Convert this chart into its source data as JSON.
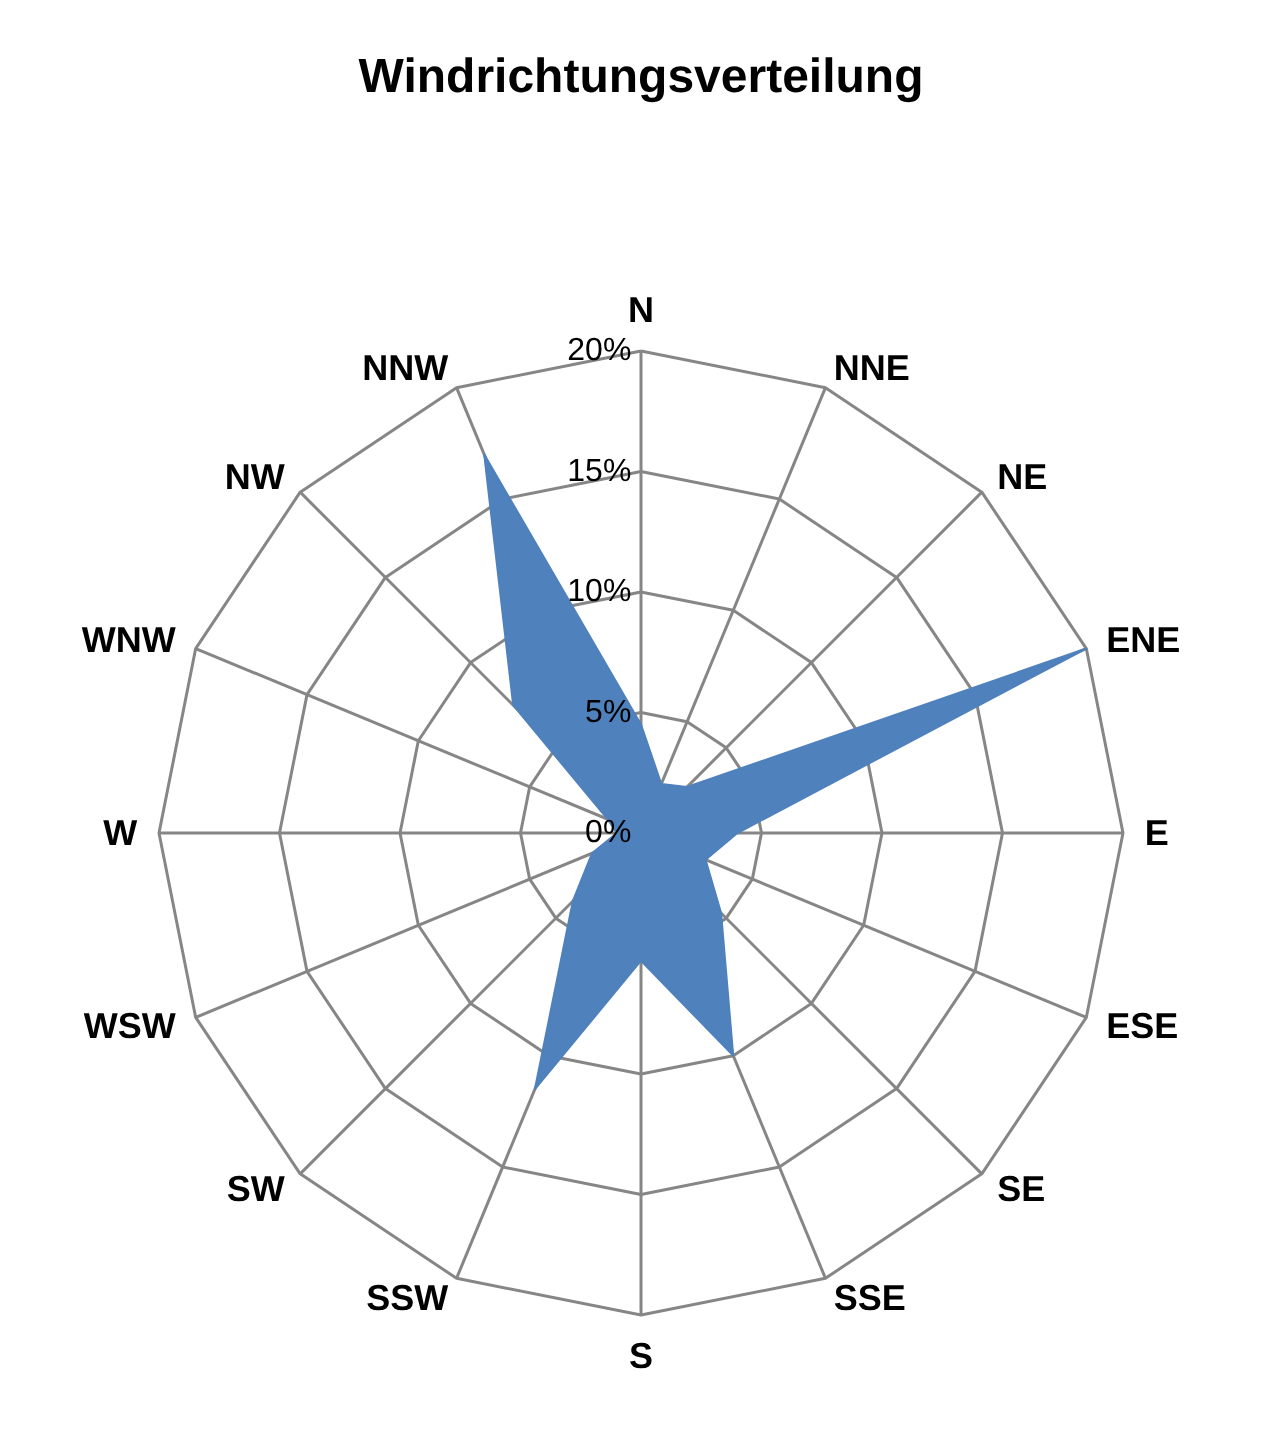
{
  "chart_data": {
    "type": "radar",
    "title": "Windrichtungsverteilung",
    "categories": [
      "N",
      "NNE",
      "NE",
      "ENE",
      "E",
      "ESE",
      "SE",
      "SSE",
      "S",
      "SSW",
      "SW",
      "WSW",
      "W",
      "WNW",
      "NW",
      "NNW"
    ],
    "series": [
      {
        "color": "#4f81bd",
        "values": [
          4.5,
          2.2,
          2.7,
          20,
          4,
          2.9,
          4.7,
          10,
          5.3,
          11.5,
          4,
          2.2,
          1,
          1.5,
          7.5,
          17
        ]
      }
    ],
    "ylim": [
      0,
      20
    ],
    "yticks": [
      {
        "value": 0,
        "label": "0%"
      },
      {
        "value": 5,
        "label": "5%"
      },
      {
        "value": 10,
        "label": "10%"
      },
      {
        "value": 15,
        "label": "15%"
      },
      {
        "value": 20,
        "label": "20%"
      }
    ],
    "grid": true
  }
}
